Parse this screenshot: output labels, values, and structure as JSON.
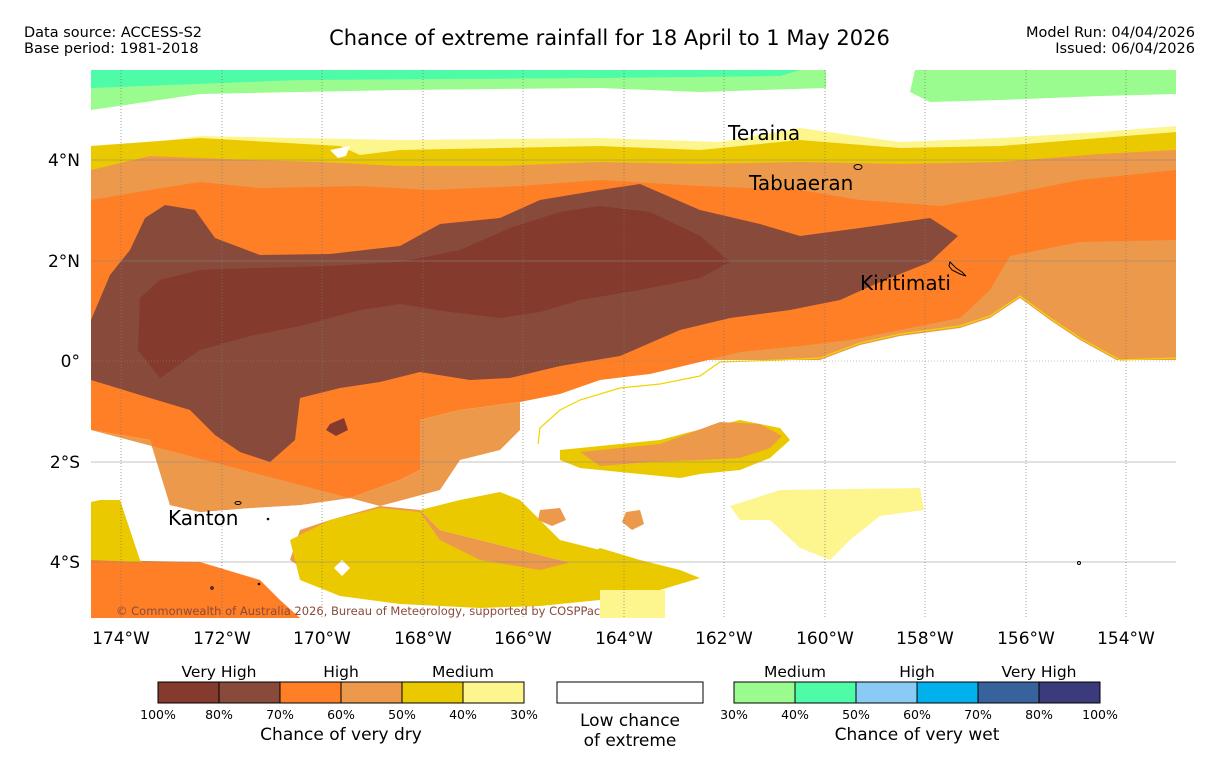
{
  "header": {
    "data_source": "Data source: ACCESS-S2",
    "base_period": "Base period: 1981-2018",
    "title": "Chance of extreme rainfall for 18 April to 1 May 2026",
    "model_run": "Model Run: 04/04/2026",
    "issued": "Issued: 06/04/2026"
  },
  "map": {
    "lat_labels": [
      "4°N",
      "2°N",
      "0°",
      "2°S",
      "4°S"
    ],
    "lon_labels": [
      "174°W",
      "172°W",
      "170°W",
      "168°W",
      "166°W",
      "164°W",
      "162°W",
      "160°W",
      "158°W",
      "156°W",
      "154°W"
    ],
    "places": [
      "Teraina",
      "Tabuaeran",
      "Kiritimati",
      "Kanton"
    ],
    "copyright": "© Commonwealth of Australia 2026, Bureau of Meteorology, supported by COSPPac",
    "colors": {
      "dry_100": "#853a2e",
      "dry_80": "#874a3b",
      "dry_70": "#ff7f27",
      "dry_60": "#ec994b",
      "dry_50": "#ebc900",
      "dry_40": "#fdf68f",
      "low": "#ffffff",
      "wet_30": "#9afc8e",
      "wet_40": "#4efba7",
      "wet_50": "#8acbf6",
      "wet_60": "#02b1ec",
      "wet_70": "#38629c",
      "wet_80": "#3b3a7a"
    }
  },
  "legend": {
    "dry": {
      "levels": [
        "Very High",
        "High",
        "Medium"
      ],
      "ticks": [
        "100%",
        "80%",
        "70%",
        "60%",
        "50%",
        "40%",
        "30%"
      ],
      "caption": "Chance of very dry"
    },
    "low": {
      "line1": "Low chance",
      "line2": "of extreme"
    },
    "wet": {
      "levels": [
        "Medium",
        "High",
        "Very High"
      ],
      "ticks": [
        "30%",
        "40%",
        "50%",
        "60%",
        "70%",
        "80%",
        "100%"
      ],
      "caption": "Chance of very wet"
    }
  }
}
